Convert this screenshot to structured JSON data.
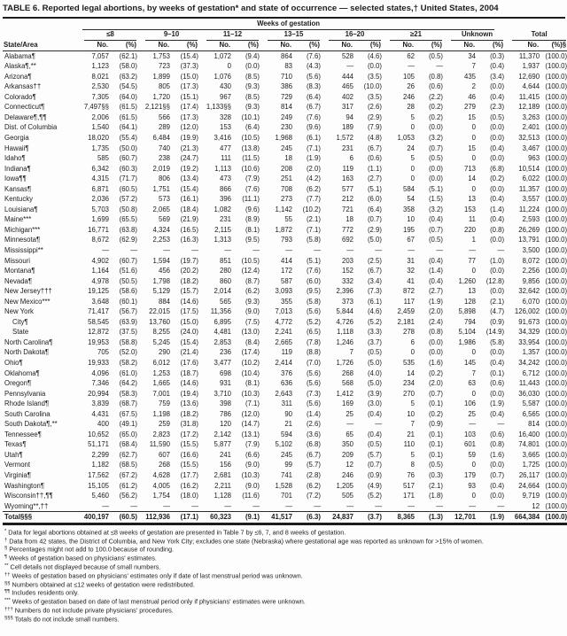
{
  "title": "TABLE 6. Reported legal abortions, by weeks of gestation* and state of occurrence — selected states,† United States, 2004",
  "table": {
    "span_header": "Weeks of gestation",
    "state_col_header": "State/Area",
    "col_groups": [
      "≤8",
      "9–10",
      "11–12",
      "13–15",
      "16–20",
      "≥21",
      "Unknown",
      "Total"
    ],
    "headers": {
      "no": "No.",
      "pct": "(%)",
      "total_pct": "(%)§"
    },
    "rows": [
      {
        "state": "Alabama¶",
        "cells": [
          "7,057",
          "(62.1)",
          "1,753",
          "(15.4)",
          "1,072",
          "(9.4)",
          "864",
          "(7.6)",
          "528",
          "(4.6)",
          "62",
          "(0.5)",
          "34",
          "(0.3)",
          "11,370",
          "(100.0)"
        ]
      },
      {
        "state": "Alaska¶,**",
        "cells": [
          "1,123",
          "(58.0)",
          "723",
          "(37.3)",
          "0",
          "(0.0)",
          "83",
          "(4.3)",
          "—",
          "(0.0)",
          "—",
          "—",
          "7",
          "(0.4)",
          "1,937",
          "(100.0)"
        ]
      },
      {
        "state": "Arizona¶",
        "cells": [
          "8,021",
          "(63.2)",
          "1,899",
          "(15.0)",
          "1,076",
          "(8.5)",
          "710",
          "(5.6)",
          "444",
          "(3.5)",
          "105",
          "(0.8)",
          "435",
          "(3.4)",
          "12,690",
          "(100.0)"
        ]
      },
      {
        "state": "Arkansas††",
        "cells": [
          "2,530",
          "(54.5)",
          "805",
          "(17.3)",
          "430",
          "(9.3)",
          "386",
          "(8.3)",
          "465",
          "(10.0)",
          "26",
          "(0.6)",
          "2",
          "(0.0)",
          "4,644",
          "(100.0)"
        ]
      },
      {
        "state": "Colorado¶",
        "cells": [
          "7,305",
          "(64.0)",
          "1,720",
          "(15.1)",
          "967",
          "(8.5)",
          "729",
          "(6.4)",
          "402",
          "(3.5)",
          "246",
          "(2.2)",
          "46",
          "(0.4)",
          "11,415",
          "(100.0)"
        ]
      },
      {
        "state": "Connecticut¶",
        "cells": [
          "7,497§§",
          "(61.5)",
          "2,121§§",
          "(17.4)",
          "1,133§§",
          "(9.3)",
          "814",
          "(6.7)",
          "317",
          "(2.6)",
          "28",
          "(0.2)",
          "279",
          "(2.3)",
          "12,189",
          "(100.0)"
        ]
      },
      {
        "state": "Delaware¶,¶¶",
        "cells": [
          "2,006",
          "(61.5)",
          "566",
          "(17.3)",
          "328",
          "(10.1)",
          "249",
          "(7.6)",
          "94",
          "(2.9)",
          "5",
          "(0.2)",
          "15",
          "(0.5)",
          "3,263",
          "(100.0)"
        ]
      },
      {
        "state": "Dist. of Columbia",
        "cells": [
          "1,540",
          "(64.1)",
          "289",
          "(12.0)",
          "153",
          "(6.4)",
          "230",
          "(9.6)",
          "189",
          "(7.9)",
          "0",
          "(0.0)",
          "0",
          "(0.0)",
          "2,401",
          "(100.0)"
        ]
      },
      {
        "state": "Georgia",
        "cells": [
          "18,020",
          "(55.4)",
          "6,484",
          "(19.9)",
          "3,416",
          "(10.5)",
          "1,968",
          "(6.1)",
          "1,572",
          "(4.8)",
          "1,053",
          "(3.2)",
          "0",
          "(0.0)",
          "32,513",
          "(100.0)"
        ]
      },
      {
        "state": "Hawaii¶",
        "cells": [
          "1,735",
          "(50.0)",
          "740",
          "(21.3)",
          "477",
          "(13.8)",
          "245",
          "(7.1)",
          "231",
          "(6.7)",
          "24",
          "(0.7)",
          "15",
          "(0.4)",
          "3,467",
          "(100.0)"
        ]
      },
      {
        "state": "Idaho¶",
        "cells": [
          "585",
          "(60.7)",
          "238",
          "(24.7)",
          "111",
          "(11.5)",
          "18",
          "(1.9)",
          "6",
          "(0.6)",
          "5",
          "(0.5)",
          "0",
          "(0.0)",
          "963",
          "(100.0)"
        ]
      },
      {
        "state": "Indiana¶",
        "cells": [
          "6,342",
          "(60.3)",
          "2,019",
          "(19.2)",
          "1,113",
          "(10.6)",
          "208",
          "(2.0)",
          "119",
          "(1.1)",
          "0",
          "(0.0)",
          "713",
          "(6.8)",
          "10,514",
          "(100.0)"
        ]
      },
      {
        "state": "Iowa¶¶",
        "cells": [
          "4,315",
          "(71.7)",
          "806",
          "(13.4)",
          "473",
          "(7.9)",
          "251",
          "(4.2)",
          "163",
          "(2.7)",
          "0",
          "(0.0)",
          "14",
          "(0.2)",
          "6,022",
          "(100.0)"
        ]
      },
      {
        "state": "Kansas¶",
        "cells": [
          "6,871",
          "(60.5)",
          "1,751",
          "(15.4)",
          "866",
          "(7.6)",
          "708",
          "(6.2)",
          "577",
          "(5.1)",
          "584",
          "(5.1)",
          "0",
          "(0.0)",
          "11,357",
          "(100.0)"
        ]
      },
      {
        "state": "Kentucky",
        "cells": [
          "2,036",
          "(57.2)",
          "573",
          "(16.1)",
          "396",
          "(11.1)",
          "273",
          "(7.7)",
          "212",
          "(6.0)",
          "54",
          "(1.5)",
          "13",
          "(0.4)",
          "3,557",
          "(100.0)"
        ]
      },
      {
        "state": "Louisiana¶",
        "cells": [
          "5,703",
          "(50.8)",
          "2,065",
          "(18.4)",
          "1,082",
          "(9.6)",
          "1,142",
          "(10.2)",
          "721",
          "(6.4)",
          "358",
          "(3.2)",
          "153",
          "(1.4)",
          "11,224",
          "(100.0)"
        ]
      },
      {
        "state": "Maine***",
        "cells": [
          "1,699",
          "(65.5)",
          "569",
          "(21.9)",
          "231",
          "(8.9)",
          "55",
          "(2.1)",
          "18",
          "(0.7)",
          "10",
          "(0.4)",
          "11",
          "(0.4)",
          "2,593",
          "(100.0)"
        ]
      },
      {
        "state": "Michigan***",
        "cells": [
          "16,771",
          "(63.8)",
          "4,324",
          "(16.5)",
          "2,115",
          "(8.1)",
          "1,872",
          "(7.1)",
          "772",
          "(2.9)",
          "195",
          "(0.7)",
          "220",
          "(0.8)",
          "26,269",
          "(100.0)"
        ]
      },
      {
        "state": "Minnesota¶",
        "cells": [
          "8,672",
          "(62.9)",
          "2,253",
          "(16.3)",
          "1,313",
          "(9.5)",
          "793",
          "(5.8)",
          "692",
          "(5.0)",
          "67",
          "(0.5)",
          "1",
          "(0.0)",
          "13,791",
          "(100.0)"
        ]
      },
      {
        "state": "Mississippi**",
        "cells": [
          "—",
          "—",
          "—",
          "—",
          "—",
          "—",
          "—",
          "—",
          "—",
          "—",
          "—",
          "—",
          "—",
          "—",
          "3,500",
          "(100.0)"
        ]
      },
      {
        "state": "Missouri",
        "cells": [
          "4,902",
          "(60.7)",
          "1,594",
          "(19.7)",
          "851",
          "(10.5)",
          "414",
          "(5.1)",
          "203",
          "(2.5)",
          "31",
          "(0.4)",
          "77",
          "(1.0)",
          "8,072",
          "(100.0)"
        ]
      },
      {
        "state": "Montana¶",
        "cells": [
          "1,164",
          "(51.6)",
          "456",
          "(20.2)",
          "280",
          "(12.4)",
          "172",
          "(7.6)",
          "152",
          "(6.7)",
          "32",
          "(1.4)",
          "0",
          "(0.0)",
          "2,256",
          "(100.0)"
        ]
      },
      {
        "state": "Nevada¶",
        "cells": [
          "4,978",
          "(50.5)",
          "1,798",
          "(18.2)",
          "860",
          "(8.7)",
          "587",
          "(6.0)",
          "332",
          "(3.4)",
          "41",
          "(0.4)",
          "1,260",
          "(12.8)",
          "9,856",
          "(100.0)"
        ]
      },
      {
        "state": "New Jersey†††",
        "cells": [
          "19,125",
          "(58.6)",
          "5,129",
          "(15.7)",
          "2,014",
          "(6.2)",
          "3,093",
          "(9.5)",
          "2,396",
          "(7.3)",
          "872",
          "(2.7)",
          "13",
          "(0.0)",
          "32,642",
          "(100.0)"
        ]
      },
      {
        "state": "New Mexico***",
        "cells": [
          "3,648",
          "(60.1)",
          "884",
          "(14.6)",
          "565",
          "(9.3)",
          "355",
          "(5.8)",
          "373",
          "(6.1)",
          "117",
          "(1.9)",
          "128",
          "(2.1)",
          "6,070",
          "(100.0)"
        ]
      },
      {
        "state": "New York",
        "cells": [
          "71,417",
          "(56.7)",
          "22,015",
          "(17.5)",
          "11,356",
          "(9.0)",
          "7,013",
          "(5.6)",
          "5,844",
          "(4.6)",
          "2,459",
          "(2.0)",
          "5,898",
          "(4.7)",
          "126,002",
          "(100.0)"
        ]
      },
      {
        "state": "City¶",
        "indent": true,
        "cells": [
          "58,545",
          "(63.9)",
          "13,760",
          "(15.0)",
          "6,895",
          "(7.5)",
          "4,772",
          "(5.2)",
          "4,726",
          "(5.2)",
          "2,181",
          "(2.4)",
          "794",
          "(0.9)",
          "91,673",
          "(100.0)"
        ]
      },
      {
        "state": "State",
        "indent": true,
        "cells": [
          "12,872",
          "(37.5)",
          "8,255",
          "(24.0)",
          "4,481",
          "(13.0)",
          "2,241",
          "(6.5)",
          "1,118",
          "(3.3)",
          "278",
          "(0.8)",
          "5,104",
          "(14.9)",
          "34,329",
          "(100.0)"
        ]
      },
      {
        "state": "North Carolina¶",
        "cells": [
          "19,953",
          "(58.8)",
          "5,245",
          "(15.4)",
          "2,853",
          "(8.4)",
          "2,665",
          "(7.8)",
          "1,246",
          "(3.7)",
          "6",
          "(0.0)",
          "1,986",
          "(5.8)",
          "33,954",
          "(100.0)"
        ]
      },
      {
        "state": "North Dakota¶",
        "cells": [
          "705",
          "(52.0)",
          "290",
          "(21.4)",
          "236",
          "(17.4)",
          "119",
          "(8.8)",
          "7",
          "(0.5)",
          "0",
          "(0.0)",
          "0",
          "(0.0)",
          "1,357",
          "(100.0)"
        ]
      },
      {
        "state": "Ohio¶",
        "cells": [
          "19,933",
          "(58.2)",
          "6,012",
          "(17.6)",
          "3,477",
          "(10.2)",
          "2,414",
          "(7.0)",
          "1,726",
          "(5.0)",
          "535",
          "(1.6)",
          "145",
          "(0.4)",
          "34,242",
          "(100.0)"
        ]
      },
      {
        "state": "Oklahoma¶",
        "cells": [
          "4,096",
          "(61.0)",
          "1,253",
          "(18.7)",
          "698",
          "(10.4)",
          "376",
          "(5.6)",
          "268",
          "(4.0)",
          "14",
          "(0.2)",
          "7",
          "(0.1)",
          "6,712",
          "(100.0)"
        ]
      },
      {
        "state": "Oregon¶",
        "cells": [
          "7,346",
          "(64.2)",
          "1,665",
          "(14.6)",
          "931",
          "(8.1)",
          "636",
          "(5.6)",
          "568",
          "(5.0)",
          "234",
          "(2.0)",
          "63",
          "(0.6)",
          "11,443",
          "(100.0)"
        ]
      },
      {
        "state": "Pennsylvania",
        "cells": [
          "20,994",
          "(58.3)",
          "7,001",
          "(19.4)",
          "3,710",
          "(10.3)",
          "2,643",
          "(7.3)",
          "1,412",
          "(3.9)",
          "270",
          "(0.7)",
          "0",
          "(0.0)",
          "36,030",
          "(100.0)"
        ]
      },
      {
        "state": "Rhode Island¶",
        "cells": [
          "3,839",
          "(68.7)",
          "759",
          "(13.6)",
          "398",
          "(7.1)",
          "311",
          "(5.6)",
          "169",
          "(3.0)",
          "5",
          "(0.1)",
          "106",
          "(1.9)",
          "5,587",
          "(100.0)"
        ]
      },
      {
        "state": "South Carolina",
        "cells": [
          "4,431",
          "(67.5)",
          "1,198",
          "(18.2)",
          "786",
          "(12.0)",
          "90",
          "(1.4)",
          "25",
          "(0.4)",
          "10",
          "(0.2)",
          "25",
          "(0.4)",
          "6,565",
          "(100.0)"
        ]
      },
      {
        "state": "South Dakota¶,**",
        "cells": [
          "400",
          "(49.1)",
          "259",
          "(31.8)",
          "120",
          "(14.7)",
          "21",
          "(2.6)",
          "—",
          "—",
          "7",
          "(0.9)",
          "—",
          "—",
          "814",
          "(100.0)"
        ]
      },
      {
        "state": "Tennessee¶",
        "cells": [
          "10,652",
          "(65.0)",
          "2,823",
          "(17.2)",
          "2,142",
          "(13.1)",
          "594",
          "(3.6)",
          "65",
          "(0.4)",
          "21",
          "(0.1)",
          "103",
          "(0.6)",
          "16,400",
          "(100.0)"
        ]
      },
      {
        "state": "Texas¶",
        "cells": [
          "51,171",
          "(68.4)",
          "11,590",
          "(15.5)",
          "5,877",
          "(7.9)",
          "5,102",
          "(6.8)",
          "350",
          "(0.5)",
          "110",
          "(0.1)",
          "601",
          "(0.8)",
          "74,801",
          "(100.0)"
        ]
      },
      {
        "state": "Utah¶",
        "cells": [
          "2,299",
          "(62.7)",
          "607",
          "(16.6)",
          "241",
          "(6.6)",
          "245",
          "(6.7)",
          "209",
          "(5.7)",
          "5",
          "(0.1)",
          "59",
          "(1.6)",
          "3,665",
          "(100.0)"
        ]
      },
      {
        "state": "Vermont",
        "cells": [
          "1,182",
          "(68.5)",
          "268",
          "(15.5)",
          "156",
          "(9.0)",
          "99",
          "(5.7)",
          "12",
          "(0.7)",
          "8",
          "(0.5)",
          "0",
          "(0.0)",
          "1,725",
          "(100.0)"
        ]
      },
      {
        "state": "Virginia¶",
        "cells": [
          "17,562",
          "(67.2)",
          "4,628",
          "(17.7)",
          "2,681",
          "(10.3)",
          "741",
          "(2.8)",
          "246",
          "(0.9)",
          "76",
          "(0.3)",
          "179",
          "(0.7)",
          "26,117",
          "(100.0)"
        ]
      },
      {
        "state": "Washington¶",
        "cells": [
          "15,105",
          "(61.2)",
          "4,005",
          "(16.2)",
          "2,211",
          "(9.0)",
          "1,528",
          "(6.2)",
          "1,205",
          "(4.9)",
          "517",
          "(2.1)",
          "93",
          "(0.4)",
          "24,664",
          "(100.0)"
        ]
      },
      {
        "state": "Wisconsin††,¶¶",
        "cells": [
          "5,460",
          "(56.2)",
          "1,754",
          "(18.0)",
          "1,128",
          "(11.6)",
          "701",
          "(7.2)",
          "505",
          "(5.2)",
          "171",
          "(1.8)",
          "0",
          "(0.0)",
          "9,719",
          "(100.0)"
        ]
      },
      {
        "state": "Wyoming**,††",
        "cells": [
          "—",
          "—",
          "—",
          "—",
          "—",
          "—",
          "—",
          "—",
          "—",
          "—",
          "—",
          "—",
          "—",
          "—",
          "12",
          "(100.0)"
        ]
      },
      {
        "state": "Total§§§",
        "total": true,
        "cells": [
          "400,197",
          "(60.5)",
          "112,936",
          "(17.1)",
          "60,323",
          "(9.1)",
          "41,517",
          "(6.3)",
          "24,837",
          "(3.7)",
          "8,365",
          "(1.3)",
          "12,701",
          "(1.9)",
          "664,384",
          "(100.0)"
        ]
      }
    ]
  },
  "footnotes": [
    {
      "marker": "*",
      "text": "Data for legal abortions obtained at ≤8 weeks of gestation are presented in Table 7 by ≤6, 7, and 8 weeks of gestation."
    },
    {
      "marker": "†",
      "text": "Data from 42 states, the District of Columbia, and New York City; excludes one state (Nebraska) where gestational age was reported as unknown for >15% of women."
    },
    {
      "marker": "§",
      "text": "Percentages might not add to 100.0 because of rounding."
    },
    {
      "marker": "¶",
      "text": "Weeks of gestation based on physicians' estimates."
    },
    {
      "marker": "**",
      "text": "Cell details not displayed because of small numbers."
    },
    {
      "marker": "††",
      "text": "Weeks of gestation based on physicians' estimates only if date of last menstrual period was unknown."
    },
    {
      "marker": "§§",
      "text": "Numbers obtained at ≤12 weeks of gestation were redistributed."
    },
    {
      "marker": "¶¶",
      "text": "Includes residents only."
    },
    {
      "marker": "***",
      "text": "Weeks of gestation based on date of last menstrual period only if physicians' estimates were unknown."
    },
    {
      "marker": "†††",
      "text": "Numbers do not include private physicians' procedures."
    },
    {
      "marker": "§§§",
      "text": "Totals do not include small numbers."
    }
  ]
}
